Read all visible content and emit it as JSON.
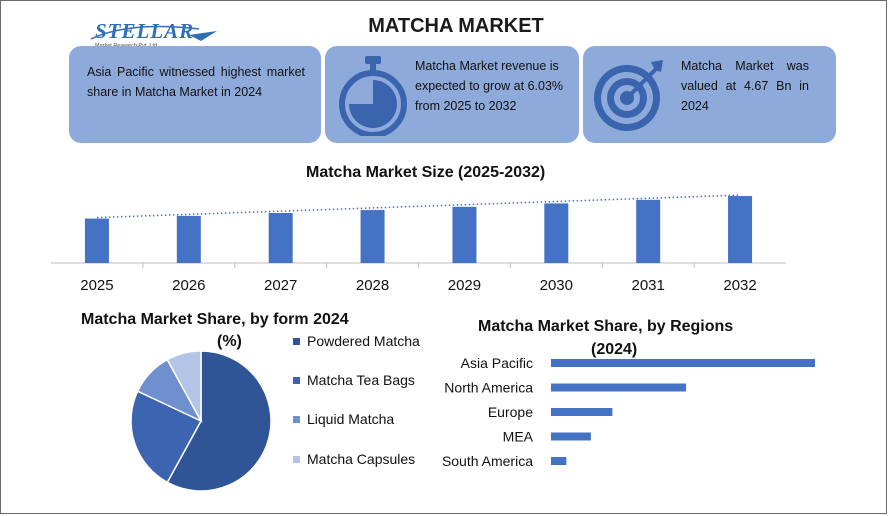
{
  "logo": {
    "name": "STELLAR",
    "tagline": "Market Research Pvt. Ltd."
  },
  "title": "MATCHA MARKET",
  "cards": [
    {
      "text": "Asia Pacific witnessed highest market share in Matcha Market in 2024",
      "icon": "globe-icon"
    },
    {
      "text": "Matcha Market revenue is expected to grow at 6.03% from 2025 to 2032",
      "icon": "stopwatch-icon"
    },
    {
      "text": "Matcha Market was valued at 4.67 Bn in 2024",
      "icon": "target-icon"
    }
  ],
  "colors": {
    "card_bg": "#8eaadb",
    "bar": "#4472c4",
    "trend": "#4472c4",
    "pie": [
      "#2f5597",
      "#3c64b1",
      "#6f8fcf",
      "#b4c4e7"
    ]
  },
  "chart_data": [
    {
      "type": "bar",
      "title": "Matcha Market Size (2025-2032)",
      "categories": [
        "2025",
        "2026",
        "2027",
        "2028",
        "2029",
        "2030",
        "2031",
        "2032"
      ],
      "values": [
        4.95,
        5.25,
        5.57,
        5.9,
        6.26,
        6.64,
        7.04,
        7.46
      ],
      "trendline": "linear, dotted",
      "ylim": [
        0,
        7.8
      ],
      "grid": false
    },
    {
      "type": "pie",
      "title": "Matcha Market Share, by form 2024 (%)",
      "labels": [
        "Powdered Matcha",
        "Matcha Tea Bags",
        "Liquid Matcha",
        "Matcha Capsules"
      ],
      "values": [
        58,
        24,
        10,
        8
      ],
      "legend": "right"
    },
    {
      "type": "bar",
      "orientation": "horizontal",
      "title": "Matcha Market Share, by Regions (2024)",
      "categories": [
        "Asia Pacific",
        "North America",
        "Europe",
        "MEA",
        "South America"
      ],
      "values": [
        43,
        22,
        10,
        6.5,
        2.5
      ],
      "grid": false
    }
  ]
}
